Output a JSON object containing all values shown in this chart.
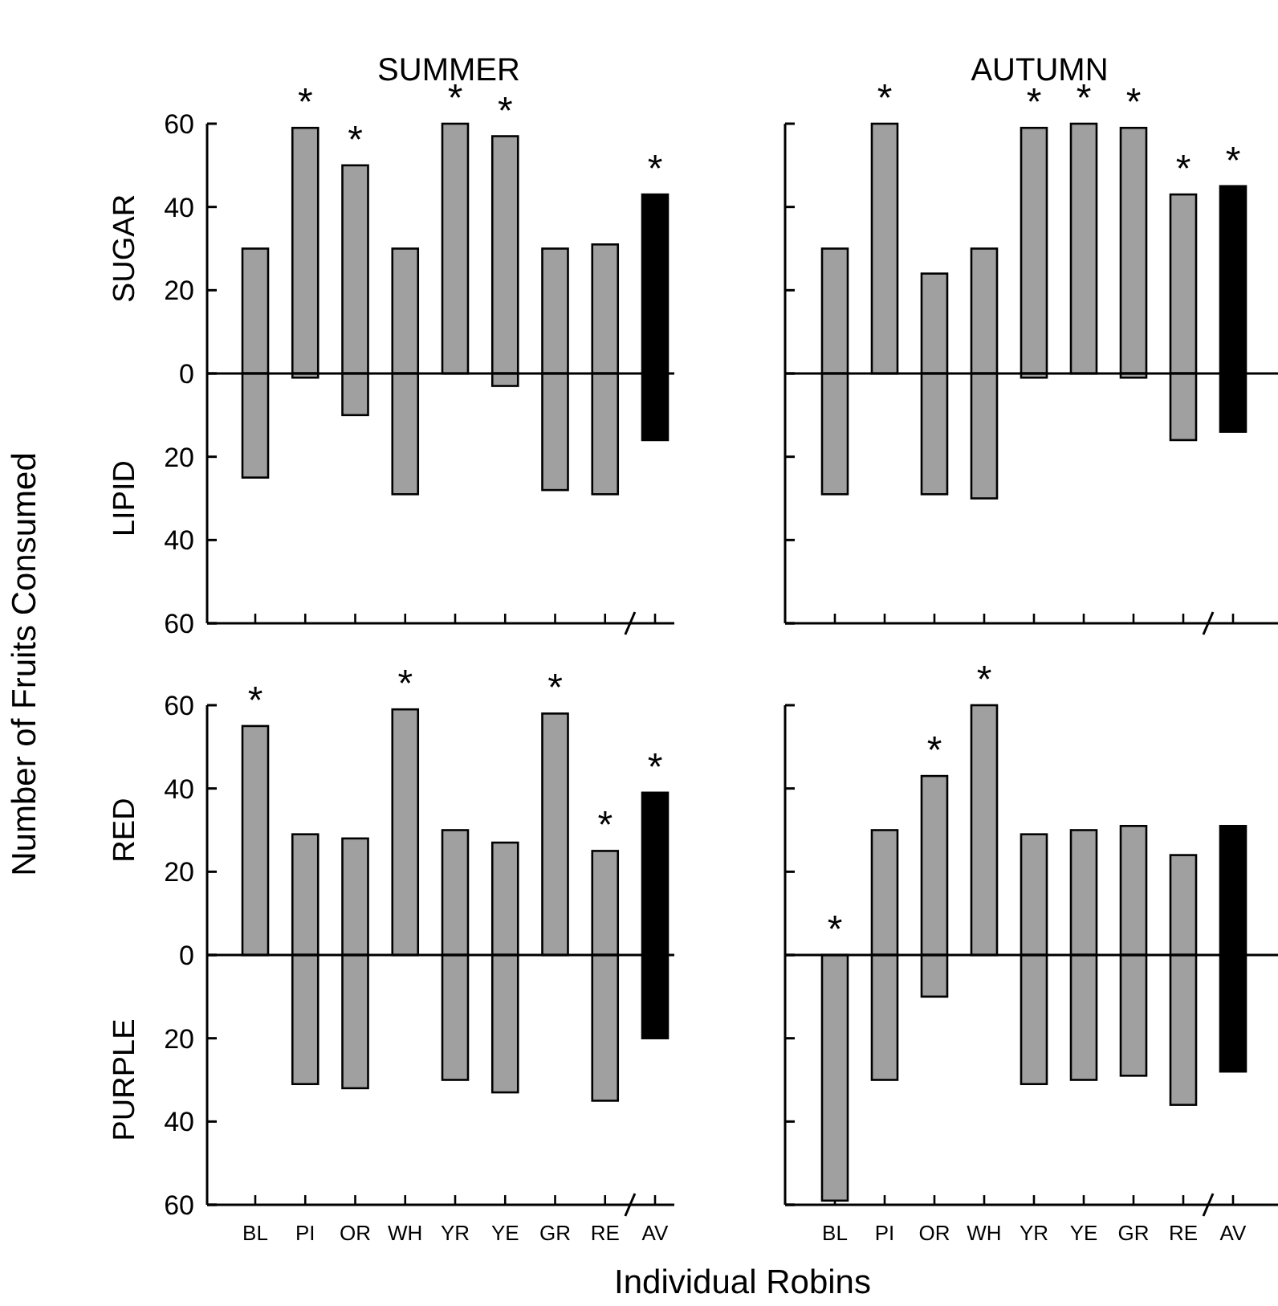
{
  "chart_data": [
    {
      "type": "bar",
      "title": "SUMMER",
      "ylabel": "Number of Fruits Consumed",
      "categories": [
        "BL",
        "PI",
        "OR",
        "WH",
        "YR",
        "YE",
        "GR",
        "RE",
        "AV"
      ],
      "stacked": true,
      "series": [
        {
          "colors": [
            "#a0a0a0",
            "#a0a0a0",
            "#a0a0a0",
            "#a0a0a0",
            "#a0a0a0",
            "#a0a0a0",
            "#a0a0a0",
            "#a0a0a0",
            "#000000"
          ],
          "values": [
            30,
            59,
            50,
            30,
            60,
            57,
            30,
            31,
            43
          ]
        },
        {
          "colors": [
            "#a0a0a0",
            "#a0a0a0",
            "#a0a0a0",
            "#a0a0a0",
            "#a0a0a0",
            "#a0a0a0",
            "#a0a0a0",
            "#a0a0a0",
            "#000000"
          ],
          "values": [
            -25,
            -1,
            -10,
            -29,
            0,
            -3,
            -28,
            -29,
            -16
          ]
        }
      ],
      "ylim": [
        -60,
        60
      ],
      "yticks": [
        {
          "value": -60,
          "label": "60"
        },
        {
          "value": -40,
          "label": "40"
        },
        {
          "value": -20,
          "label": "20"
        },
        0,
        20,
        40,
        60
      ],
      "tick_labels": "y",
      "annotations": [
        "SUGAR",
        "LIPID",
        {
          "text": "*",
          "x": "PI",
          "y": 59
        },
        {
          "text": "*",
          "x": "OR",
          "y": 50
        },
        {
          "text": "*",
          "x": "YR",
          "y": 60
        },
        {
          "text": "*",
          "x": "YE",
          "y": 57
        },
        {
          "text": "*",
          "x": "AV",
          "y": 43
        }
      ]
    },
    {
      "type": "bar",
      "title": "AUTUMN",
      "categories": [
        "BL",
        "PI",
        "OR",
        "WH",
        "YR",
        "YE",
        "GR",
        "RE",
        "AV"
      ],
      "stacked": true,
      "series": [
        {
          "colors": [
            "#a0a0a0",
            "#a0a0a0",
            "#a0a0a0",
            "#a0a0a0",
            "#a0a0a0",
            "#a0a0a0",
            "#a0a0a0",
            "#a0a0a0",
            "#000000"
          ],
          "values": [
            30,
            60,
            24,
            30,
            59,
            60,
            59,
            43,
            45
          ]
        },
        {
          "colors": [
            "#a0a0a0",
            "#a0a0a0",
            "#a0a0a0",
            "#a0a0a0",
            "#a0a0a0",
            "#a0a0a0",
            "#a0a0a0",
            "#a0a0a0",
            "#000000"
          ],
          "values": [
            -29,
            0,
            -29,
            -30,
            -1,
            0,
            -1,
            -16,
            -14
          ]
        }
      ],
      "ylim": [
        -60,
        60
      ],
      "yticks": [
        {
          "value": -60,
          "label": null
        },
        {
          "value": -40,
          "label": null
        },
        {
          "value": -20,
          "label": null
        },
        {
          "value": 0,
          "label": null
        },
        {
          "value": 20,
          "label": null
        },
        {
          "value": 40,
          "label": null
        },
        {
          "value": 60,
          "label": null
        }
      ],
      "tick_labels": false,
      "annotations": [
        {
          "text": "*",
          "x": "PI",
          "y": 60
        },
        {
          "text": "*",
          "x": "YR",
          "y": 59
        },
        {
          "text": "*",
          "x": "YE",
          "y": 60
        },
        {
          "text": "*",
          "x": "GR",
          "y": 59
        },
        {
          "text": "*",
          "x": "RE",
          "y": 43
        },
        {
          "text": "*",
          "x": "AV",
          "y": 45
        }
      ]
    },
    {
      "type": "bar",
      "xlabel": "Individual Robins",
      "categories": [
        "BL",
        "PI",
        "OR",
        "WH",
        "YR",
        "YE",
        "GR",
        "RE",
        "AV"
      ],
      "stacked": true,
      "series": [
        {
          "colors": [
            "#a0a0a0",
            "#a0a0a0",
            "#a0a0a0",
            "#a0a0a0",
            "#a0a0a0",
            "#a0a0a0",
            "#a0a0a0",
            "#a0a0a0",
            "#000000"
          ],
          "values": [
            55,
            29,
            28,
            59,
            30,
            27,
            58,
            25,
            39
          ]
        },
        {
          "colors": [
            "#a0a0a0",
            "#a0a0a0",
            "#a0a0a0",
            "#a0a0a0",
            "#a0a0a0",
            "#a0a0a0",
            "#a0a0a0",
            "#a0a0a0",
            "#000000"
          ],
          "values": [
            0,
            -31,
            -32,
            0,
            -30,
            -33,
            0,
            -35,
            -20
          ]
        }
      ],
      "ylim": [
        -60,
        60
      ],
      "yticks": [
        {
          "value": -60,
          "label": "60"
        },
        {
          "value": -40,
          "label": "40"
        },
        {
          "value": -20,
          "label": "20"
        },
        0,
        20,
        40,
        60
      ],
      "annotations": [
        "RED",
        "PURPLE",
        {
          "text": "*",
          "x": "BL",
          "y": 55
        },
        {
          "text": "*",
          "x": "WH",
          "y": 59
        },
        {
          "text": "*",
          "x": "GR",
          "y": 58
        },
        {
          "text": "*",
          "x": "RE",
          "y": 25
        },
        {
          "text": "*",
          "x": "AV",
          "y": 39
        }
      ]
    },
    {
      "type": "bar",
      "categories": [
        "BL",
        "PI",
        "OR",
        "WH",
        "YR",
        "YE",
        "GR",
        "RE",
        "AV"
      ],
      "stacked": true,
      "series": [
        {
          "colors": [
            "#a0a0a0",
            "#a0a0a0",
            "#a0a0a0",
            "#a0a0a0",
            "#a0a0a0",
            "#a0a0a0",
            "#a0a0a0",
            "#a0a0a0",
            "#000000"
          ],
          "values": [
            0,
            30,
            43,
            60,
            29,
            30,
            31,
            24,
            31
          ]
        },
        {
          "colors": [
            "#a0a0a0",
            "#a0a0a0",
            "#a0a0a0",
            "#a0a0a0",
            "#a0a0a0",
            "#a0a0a0",
            "#a0a0a0",
            "#a0a0a0",
            "#000000"
          ],
          "values": [
            -59,
            -30,
            -10,
            0,
            -31,
            -30,
            -29,
            -36,
            -28
          ]
        }
      ],
      "ylim": [
        -60,
        60
      ],
      "yticks": [
        {
          "value": -60,
          "label": null
        },
        {
          "value": -40,
          "label": null
        },
        {
          "value": -20,
          "label": null
        },
        {
          "value": 0,
          "label": null
        },
        {
          "value": 20,
          "label": null
        },
        {
          "value": 40,
          "label": null
        },
        {
          "value": 60,
          "label": null
        }
      ],
      "tick_labels": "x",
      "annotations": [
        {
          "text": "*",
          "x": "BL",
          "y": 0
        },
        {
          "text": "*",
          "x": "OR",
          "y": 43
        },
        {
          "text": "*",
          "x": "WH",
          "y": 60
        }
      ]
    }
  ]
}
